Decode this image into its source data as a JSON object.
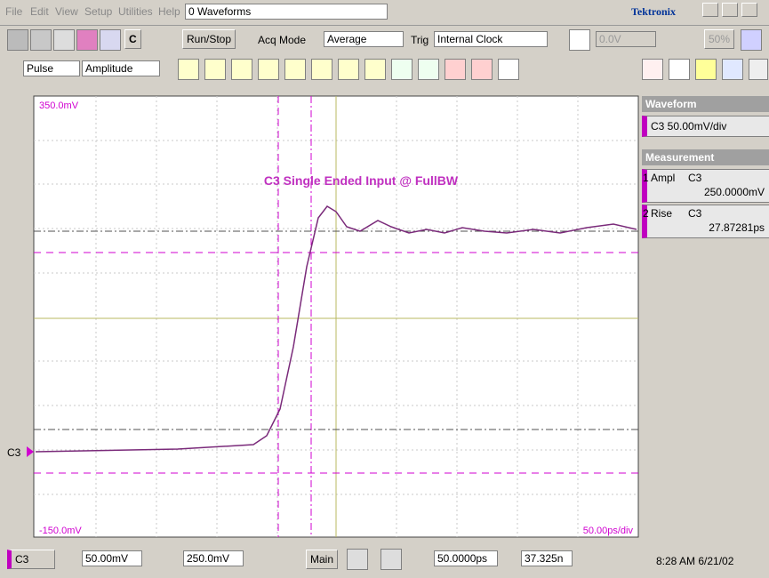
{
  "menu": {
    "items": [
      "File",
      "Edit",
      "View",
      "Setup",
      "Utilities",
      "Help"
    ],
    "status": "0 Waveforms",
    "brand": "Tektronix"
  },
  "toolbar": {
    "c_button": "C",
    "run_stop": "Run/Stop",
    "acq_mode_label": "Acq Mode",
    "acq_mode": "Average",
    "trig_label": "Trig",
    "trig_source": "Internal Clock",
    "trig_level": "0.0V",
    "percent": "50%"
  },
  "toolbar2": {
    "measure_group": "Pulse",
    "measure": "Amplitude"
  },
  "side_panel": {
    "waveform_header": "Waveform",
    "waveform_entry": "C3 50.00mV/div",
    "measurement_header": "Measurement",
    "measurements": [
      {
        "index": "1",
        "name": "Ampl",
        "source": "C3",
        "value": "250.0000mV"
      },
      {
        "index": "2",
        "name": "Rise",
        "source": "C3",
        "value": "27.87281ps"
      }
    ]
  },
  "screen": {
    "top_label": "350.0mV",
    "bottom_label": "-150.0mV",
    "timebase": "50.00ps/div",
    "title": "C3  Single Ended Input @ FullBW",
    "channel_marker": "C3"
  },
  "status_bar": {
    "channel": "C3",
    "scale": "50.00mV",
    "offset": "250.0mV",
    "main": "Main",
    "time_scale": "50.0000ps",
    "position": "37.325n",
    "clock": "8:28 AM 6/21/02"
  }
}
